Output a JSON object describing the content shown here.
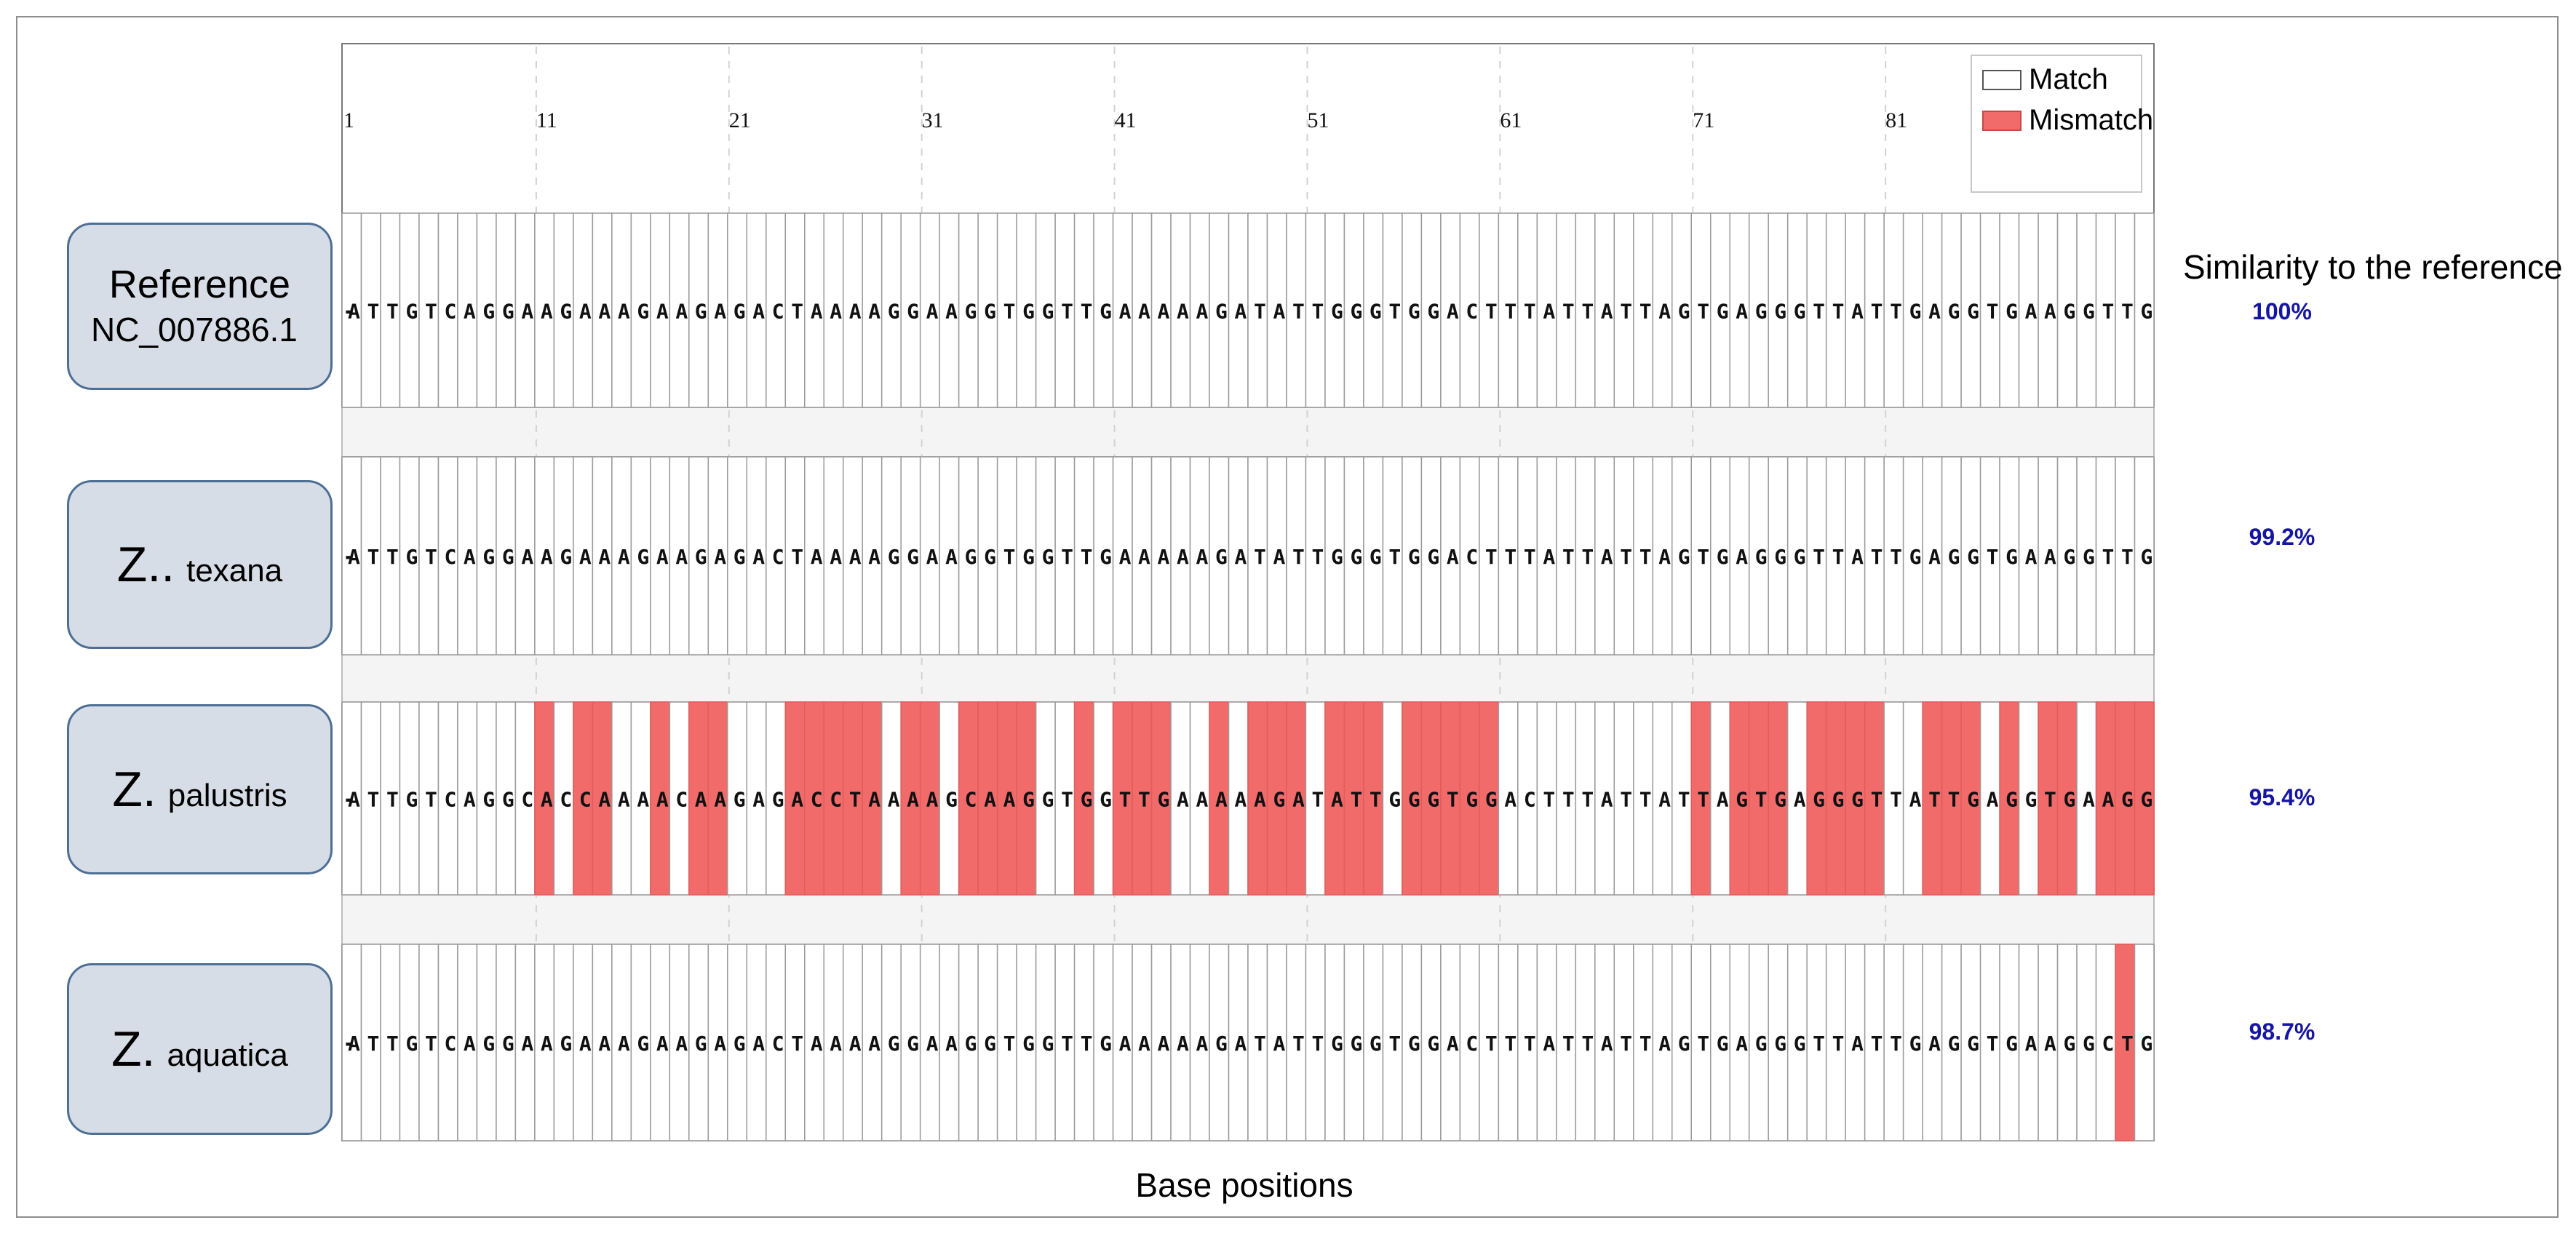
{
  "x_axis": {
    "label": "Base positions",
    "tick_labels": [
      "1",
      "11",
      "21",
      "31",
      "41",
      "51",
      "61",
      "71",
      "81"
    ]
  },
  "legend": {
    "match_label": "Match",
    "mismatch_label": "Mismatch"
  },
  "similarity_title": "Similarity to the reference",
  "colors": {
    "match": "#ffffff",
    "mismatch": "#f26b6b",
    "similarity_text": "#1515a3",
    "label_box_fill": "#d7dde6",
    "label_box_border": "#4d6f96"
  },
  "reference": {
    "title": "Reference",
    "accession": "NC_007886.1"
  },
  "tracks": [
    {
      "genus": "",
      "species": "",
      "sequence": "ATTGTCAGGAAGAAAGAAGAGACTAAAAGGAAGGTGGTTGAAAAAGATATTGGGTGGACTTTATTATTAGTGAGGGTTATTGAGGTGAAGGTTG",
      "similarity": "100%",
      "mismatch_positions": []
    },
    {
      "genus": "Z..",
      "species": "texana",
      "sequence": "ATTGTCAGGAAGAAAGAAGAGACTAAAAGGAAGGTGGTTGAAAAAGATATTGGGTGGACTTTATTATTAGTGAGGGTTATTGAGGTGAAGGTTG",
      "similarity": "99.2%",
      "mismatch_positions": []
    },
    {
      "genus": "Z.",
      "species": "palustris",
      "sequence": "ATTGTCAGGCACCAAAACAAGAGACCTAAAAGCAAGGTGGTTGAAAAAGATATTGGGTGGACTTTATTATTAGTGAGGGTTATTGAGGTGAAGG",
      "similarity": "95.4%",
      "mismatch_positions": [
        10,
        12,
        13,
        16,
        18,
        19,
        23,
        24,
        25,
        26,
        27,
        29,
        30,
        32,
        33,
        34,
        35,
        38,
        40,
        41,
        42,
        45,
        47,
        48,
        49,
        51,
        52,
        53,
        55,
        56,
        57,
        58,
        59,
        70,
        72,
        73,
        74,
        76,
        77,
        78,
        79,
        82,
        83,
        84,
        86,
        88,
        89,
        91,
        92,
        93
      ]
    },
    {
      "genus": "Z.",
      "species": "aquatica",
      "sequence": "ATTGTCAGGAAGAAAGAAGAGACTAAAAGGAAGGTGGTTGAAAAAGATATTGGGTGGACTTTATTATTAGTGAGGGTTATTGAGGTGAAGGCTG",
      "similarity": "98.7%",
      "mismatch_positions": [
        92
      ]
    }
  ]
}
